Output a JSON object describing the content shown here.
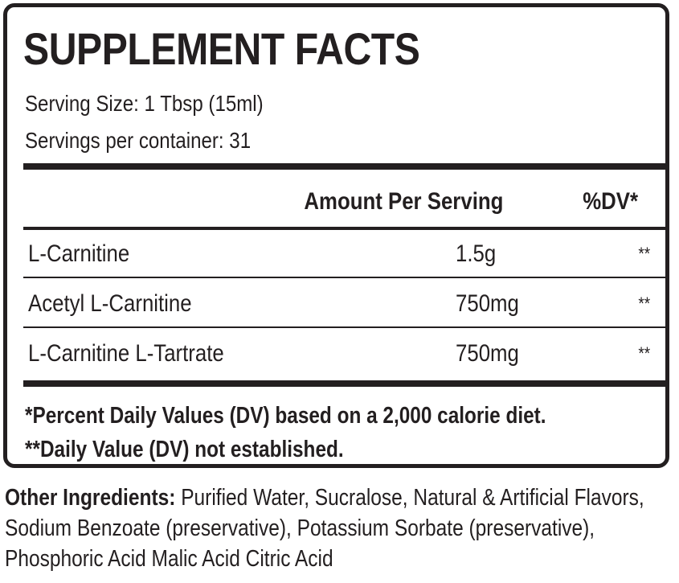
{
  "header": {
    "title": "SUPPLEMENT FACTS",
    "serving_size": "Serving Size: 1 Tbsp (15ml)",
    "servings_per_container": "Servings per container: 31"
  },
  "table": {
    "columns": [
      "Amount Per Serving",
      "%DV*"
    ],
    "rows": [
      {
        "name": "L-Carnitine",
        "amount": "1.5g",
        "dv": "**"
      },
      {
        "name": "Acetyl L-Carnitine",
        "amount": "750mg",
        "dv": "**"
      },
      {
        "name": "L-Carnitine L-Tartrate",
        "amount": "750mg",
        "dv": "**"
      }
    ]
  },
  "footnotes": [
    "*Percent Daily Values (DV) based on a 2,000 calorie diet.",
    "**Daily Value (DV) not established."
  ],
  "other_ingredients": {
    "label": "Other Ingredients:",
    "text": " Purified Water, Sucralose, Natural & Artificial Flavors, Sodium Benzoate (preservative), Potassium Sorbate (preservative), Phosphoric Acid  Malic Acid  Citric Acid"
  }
}
